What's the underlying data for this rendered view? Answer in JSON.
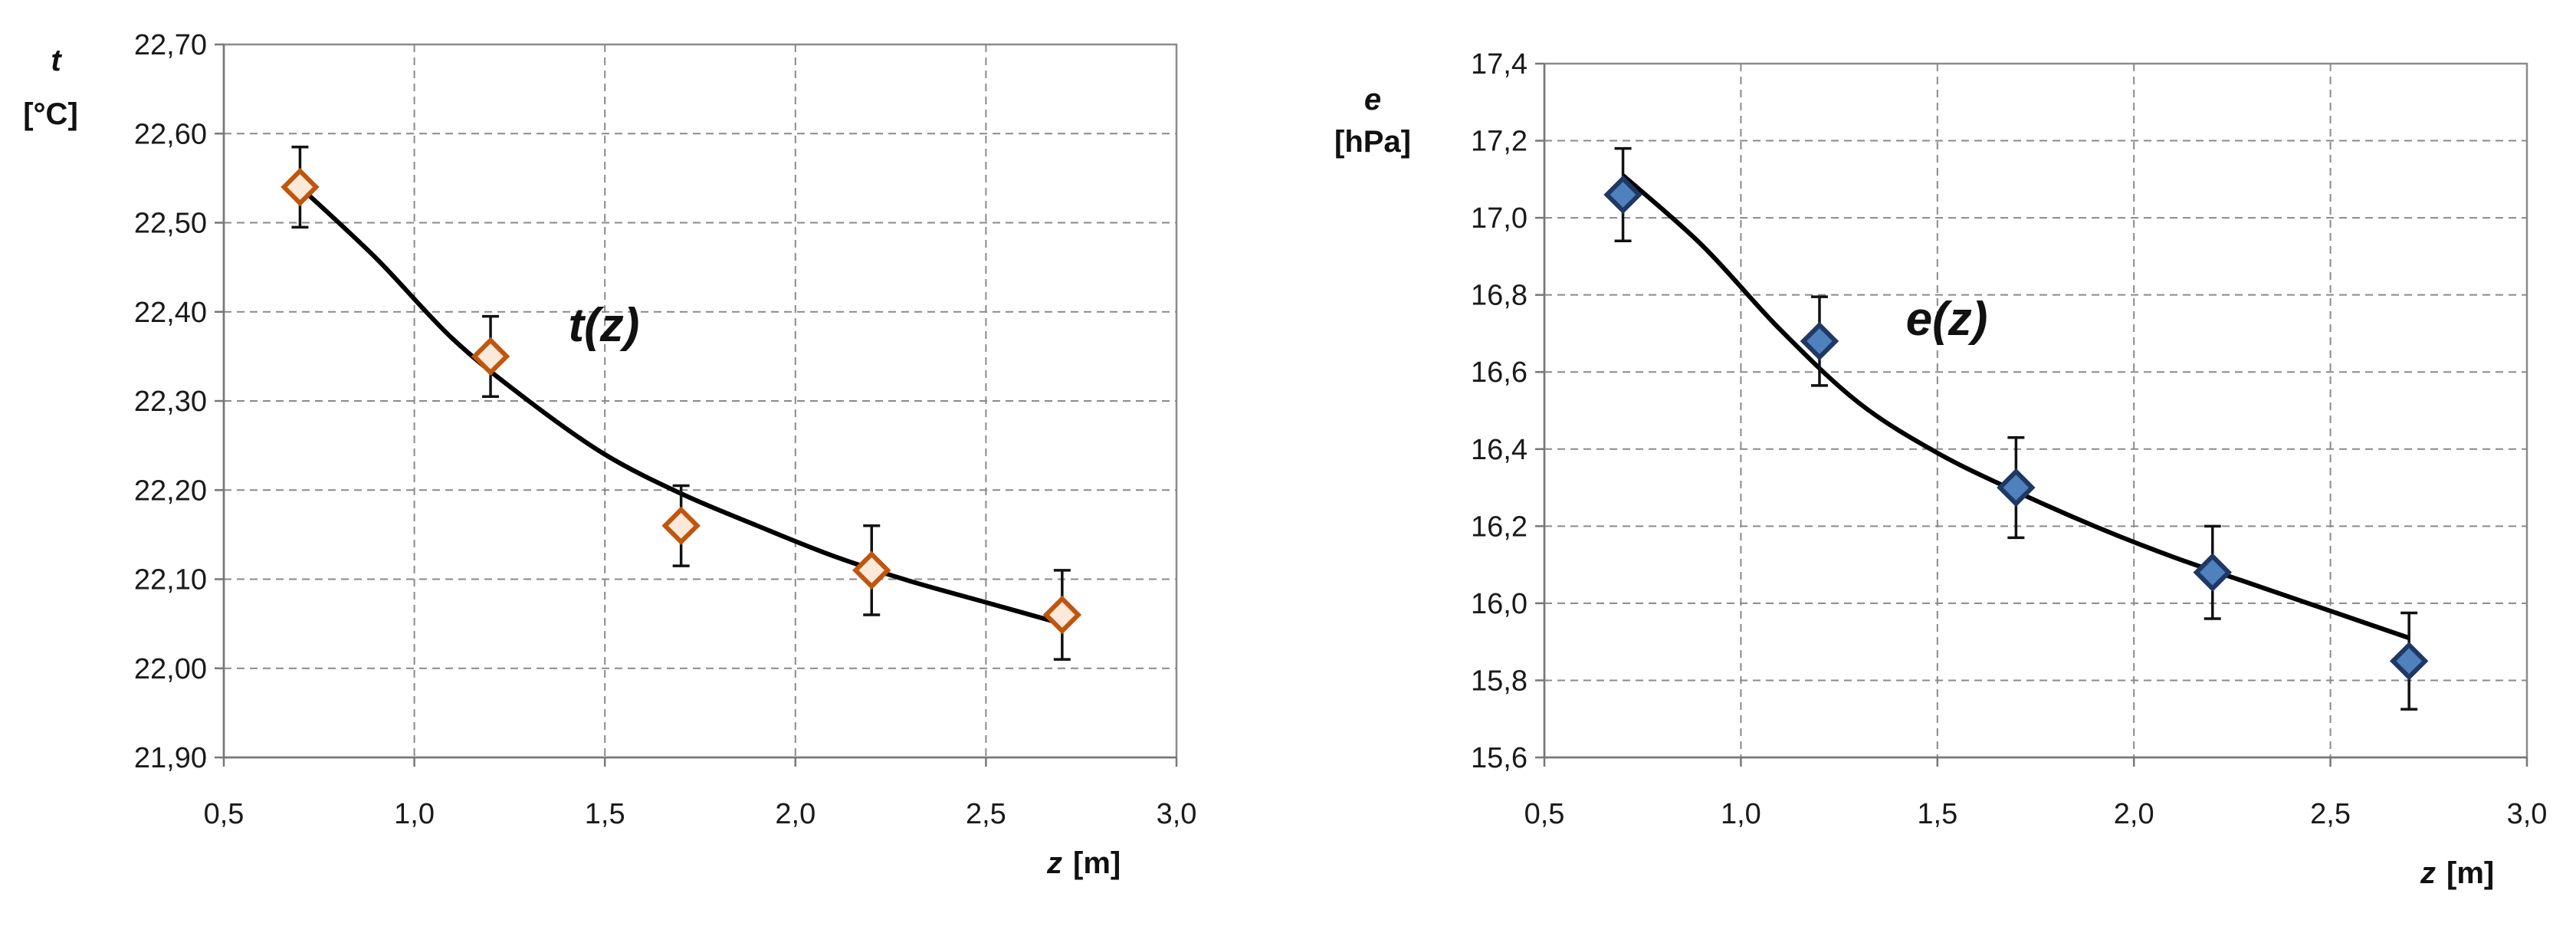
{
  "chart_data": [
    {
      "type": "scatter",
      "id": "t",
      "ylabel": "t",
      "yunit": "[°C]",
      "xlabel_var": "z",
      "xlabel_unit": "[m]",
      "annotation": "t(z)",
      "xlim": [
        0.5,
        3.0
      ],
      "ylim": [
        21.9,
        22.7
      ],
      "x_ticks": [
        0.5,
        1.0,
        1.5,
        2.0,
        2.5,
        3.0
      ],
      "x_tick_labels": [
        "0,5",
        "1,0",
        "1,5",
        "2,0",
        "2,5",
        "3,0"
      ],
      "y_ticks": [
        21.9,
        22.0,
        22.1,
        22.2,
        22.3,
        22.4,
        22.5,
        22.6,
        22.7
      ],
      "y_tick_labels": [
        "21,90",
        "22,00",
        "22,10",
        "22,20",
        "22,30",
        "22,40",
        "22,50",
        "22,60",
        "22,70"
      ],
      "grid": true,
      "points": {
        "x": [
          0.7,
          1.2,
          1.7,
          2.2,
          2.7
        ],
        "y": [
          22.54,
          22.35,
          22.16,
          22.11,
          22.06
        ],
        "err": [
          0.045,
          0.045,
          0.045,
          0.05,
          0.05
        ]
      },
      "fit": {
        "x": [
          0.7,
          0.9,
          1.1,
          1.3,
          1.5,
          1.7,
          1.9,
          2.1,
          2.3,
          2.5,
          2.7
        ],
        "y": [
          22.54,
          22.46,
          22.37,
          22.3,
          22.24,
          22.196,
          22.16,
          22.126,
          22.098,
          22.074,
          22.05
        ]
      },
      "marker_fill": "#fde9d9",
      "marker_stroke": "#c0560e"
    },
    {
      "type": "scatter",
      "id": "e",
      "ylabel": "e",
      "yunit": "[hPa]",
      "xlabel_var": "z",
      "xlabel_unit": "[m]",
      "annotation": "e(z)",
      "xlim": [
        0.5,
        3.0
      ],
      "ylim": [
        15.6,
        17.4
      ],
      "x_ticks": [
        0.5,
        1.0,
        1.5,
        2.0,
        2.5,
        3.0
      ],
      "x_tick_labels": [
        "0,5",
        "1,0",
        "1,5",
        "2,0",
        "2,5",
        "3,0"
      ],
      "y_ticks": [
        15.6,
        15.8,
        16.0,
        16.2,
        16.4,
        16.6,
        16.8,
        17.0,
        17.2,
        17.4
      ],
      "y_tick_labels": [
        "15,6",
        "15,8",
        "16,0",
        "16,2",
        "16,4",
        "16,6",
        "16,8",
        "17,0",
        "17,2",
        "17,4"
      ],
      "grid": true,
      "points": {
        "x": [
          0.7,
          1.2,
          1.7,
          2.2,
          2.7
        ],
        "y": [
          17.06,
          16.68,
          16.3,
          16.08,
          15.85
        ],
        "err": [
          0.12,
          0.115,
          0.13,
          0.12,
          0.125
        ]
      },
      "fit": {
        "x": [
          0.7,
          0.9,
          1.1,
          1.3,
          1.5,
          1.7,
          1.9,
          2.1,
          2.3,
          2.5,
          2.7
        ],
        "y": [
          17.11,
          16.93,
          16.71,
          16.52,
          16.39,
          16.29,
          16.2,
          16.12,
          16.05,
          15.98,
          15.91
        ]
      },
      "marker_fill": "#4f81bd",
      "marker_stroke": "#1f3864"
    }
  ]
}
